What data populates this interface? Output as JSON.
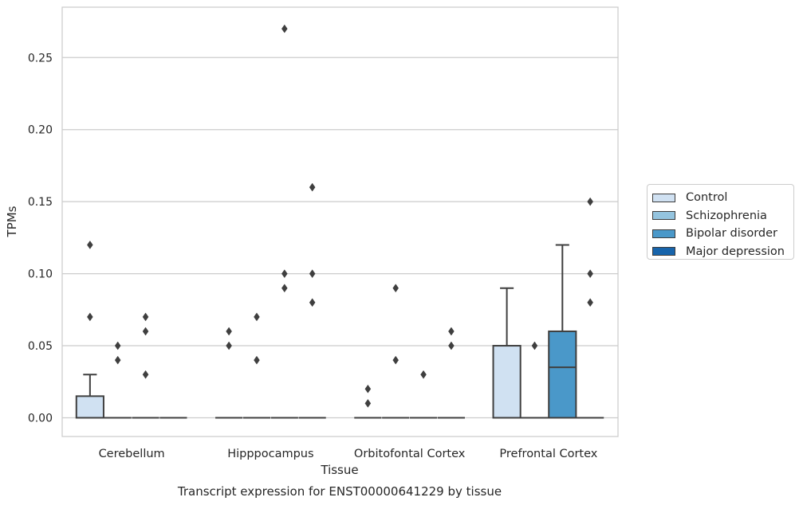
{
  "chart_data": {
    "type": "box",
    "title": "",
    "xlabel": "Tissue",
    "ylabel": "TPMs",
    "caption": "Transcript expression for ENST00000641229 by tissue",
    "ylim": [
      -0.013,
      0.285
    ],
    "yticks": [
      0.0,
      0.05,
      0.1,
      0.15,
      0.2,
      0.25
    ],
    "ytick_labels": [
      "0.00",
      "0.05",
      "0.10",
      "0.15",
      "0.20",
      "0.25"
    ],
    "grid": "horizontal",
    "legend_position": "right",
    "categories": [
      "Cerebellum",
      "Hipppocampus",
      "Orbitofontal Cortex",
      "Prefrontal Cortex"
    ],
    "series": [
      {
        "name": "Control",
        "color": "#d0e1f2",
        "boxes": [
          {
            "q1": 0.0,
            "median": 0.0,
            "q3": 0.015,
            "whisker_low": 0.0,
            "whisker_high": 0.03,
            "outliers": [
              0.12,
              0.07
            ]
          },
          {
            "q1": 0.0,
            "median": 0.0,
            "q3": 0.0,
            "whisker_low": 0.0,
            "whisker_high": 0.0,
            "outliers": [
              0.06,
              0.05
            ]
          },
          {
            "q1": 0.0,
            "median": 0.0,
            "q3": 0.0,
            "whisker_low": 0.0,
            "whisker_high": 0.0,
            "outliers": [
              0.02,
              0.01
            ]
          },
          {
            "q1": 0.0,
            "median": 0.0,
            "q3": 0.05,
            "whisker_low": 0.0,
            "whisker_high": 0.09,
            "outliers": []
          }
        ]
      },
      {
        "name": "Schizophrenia",
        "color": "#94c4df",
        "boxes": [
          {
            "q1": 0.0,
            "median": 0.0,
            "q3": 0.0,
            "whisker_low": 0.0,
            "whisker_high": 0.0,
            "outliers": [
              0.05,
              0.04
            ]
          },
          {
            "q1": 0.0,
            "median": 0.0,
            "q3": 0.0,
            "whisker_low": 0.0,
            "whisker_high": 0.0,
            "outliers": [
              0.07,
              0.04
            ]
          },
          {
            "q1": 0.0,
            "median": 0.0,
            "q3": 0.0,
            "whisker_low": 0.0,
            "whisker_high": 0.0,
            "outliers": [
              0.09,
              0.04
            ]
          },
          {
            "q1": 0.0,
            "median": 0.0,
            "q3": 0.0,
            "whisker_low": 0.0,
            "whisker_high": 0.0,
            "outliers": [
              0.05
            ]
          }
        ]
      },
      {
        "name": "Bipolar disorder",
        "color": "#4a98c9",
        "boxes": [
          {
            "q1": 0.0,
            "median": 0.0,
            "q3": 0.0,
            "whisker_low": 0.0,
            "whisker_high": 0.0,
            "outliers": [
              0.07,
              0.06,
              0.03
            ]
          },
          {
            "q1": 0.0,
            "median": 0.0,
            "q3": 0.0,
            "whisker_low": 0.0,
            "whisker_high": 0.0,
            "outliers": [
              0.27,
              0.1,
              0.09
            ]
          },
          {
            "q1": 0.0,
            "median": 0.0,
            "q3": 0.0,
            "whisker_low": 0.0,
            "whisker_high": 0.0,
            "outliers": [
              0.03
            ]
          },
          {
            "q1": 0.0,
            "median": 0.035,
            "q3": 0.06,
            "whisker_low": 0.0,
            "whisker_high": 0.12,
            "outliers": []
          }
        ]
      },
      {
        "name": "Major depression",
        "color": "#1764ab",
        "boxes": [
          {
            "q1": 0.0,
            "median": 0.0,
            "q3": 0.0,
            "whisker_low": 0.0,
            "whisker_high": 0.0,
            "outliers": []
          },
          {
            "q1": 0.0,
            "median": 0.0,
            "q3": 0.0,
            "whisker_low": 0.0,
            "whisker_high": 0.0,
            "outliers": [
              0.16,
              0.1,
              0.08
            ]
          },
          {
            "q1": 0.0,
            "median": 0.0,
            "q3": 0.0,
            "whisker_low": 0.0,
            "whisker_high": 0.0,
            "outliers": [
              0.06,
              0.05
            ]
          },
          {
            "q1": 0.0,
            "median": 0.0,
            "q3": 0.0,
            "whisker_low": 0.0,
            "whisker_high": 0.0,
            "outliers": [
              0.15,
              0.1,
              0.08
            ]
          }
        ]
      }
    ]
  }
}
